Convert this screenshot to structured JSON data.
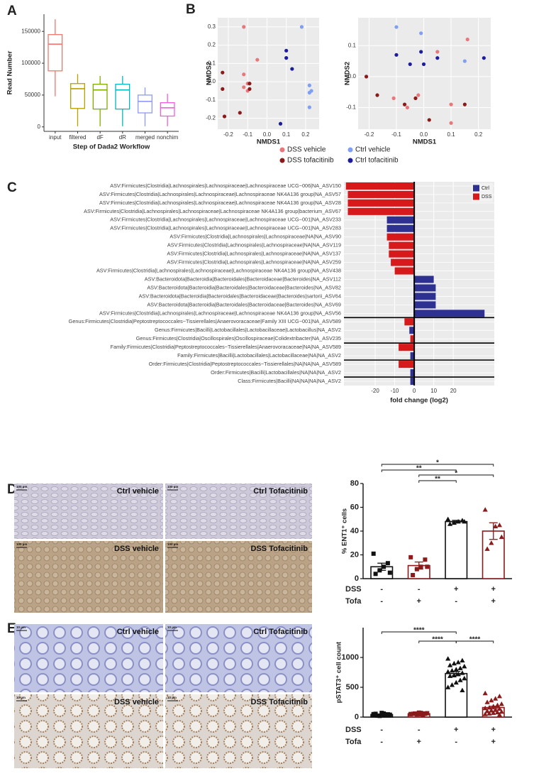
{
  "panels": [
    "A",
    "B",
    "C",
    "D",
    "E"
  ],
  "micrographs": [
    {
      "scale": "100 µm",
      "labels": [
        "Ctrl vehicle",
        "Ctrl Tofacitinib",
        "DSS vehicle",
        "DSS Tofacitinib"
      ]
    },
    {
      "scale": "10 µm",
      "labels": [
        "Ctrl vehicle",
        "Ctrl Tofacitinib",
        "DSS vehicle",
        "DSS Tofacitinib"
      ]
    }
  ],
  "chart_data": [
    {
      "type": "box",
      "y_label": "Read Number",
      "x_label": "Step of Dada2 Workflow",
      "categories": [
        "input",
        "filtered",
        "dF",
        "dR",
        "merged",
        "nonchim"
      ],
      "colors": [
        "#f0766e",
        "#b79f00",
        "#7cae00",
        "#00b8bd",
        "#8e9bf0",
        "#f05fdc"
      ],
      "min": [
        48000,
        1000,
        1000,
        1000,
        1000,
        1000
      ],
      "q1": [
        88000,
        29000,
        28000,
        28000,
        22000,
        17000
      ],
      "median": [
        130000,
        60000,
        58000,
        58000,
        40000,
        30000
      ],
      "q3": [
        145000,
        68000,
        67000,
        67000,
        50000,
        38000
      ],
      "max": [
        169000,
        83000,
        80000,
        80000,
        62000,
        52000
      ],
      "ylim": [
        -7000,
        177000
      ],
      "yticks": [
        0,
        50000,
        100000,
        150000
      ]
    },
    {
      "type": "scatter",
      "x_label": "NMDS1",
      "y_label": "NMDS2",
      "legend": "bottom",
      "plots": [
        {
          "xlim": [
            -0.255,
            0.27
          ],
          "ylim": [
            -0.26,
            0.35
          ],
          "xticks": [
            -0.2,
            -0.1,
            {
              "value": 0,
              "label": "0.0"
            },
            0.1,
            0.2
          ],
          "yticks": [
            -0.2,
            -0.1,
            {
              "value": 0,
              "label": "0.0"
            },
            0.1,
            0.2,
            0.3
          ]
        },
        {
          "xlim": [
            -0.24,
            0.245
          ],
          "ylim": [
            -0.17,
            0.19
          ],
          "xticks": [
            -0.2,
            -0.1,
            {
              "value": 0,
              "label": "0.0"
            },
            0.1,
            0.2
          ],
          "yticks": [
            -0.1,
            {
              "value": 0,
              "label": "0.0"
            },
            0.1
          ]
        }
      ],
      "series": [
        {
          "name": "DSS vehicle",
          "color": "#e8777a",
          "points": [
            [
              [
                -0.12,
                0.3
              ],
              [
                -0.05,
                0.12
              ],
              [
                -0.12,
                0.04
              ],
              [
                -0.1,
                -0.01
              ],
              [
                -0.12,
                -0.03
              ],
              [
                -0.1,
                -0.05
              ]
            ],
            [
              [
                0.16,
                0.12
              ],
              [
                0.05,
                0.08
              ],
              [
                -0.11,
                -0.07
              ],
              [
                -0.06,
                -0.1
              ],
              [
                -0.02,
                -0.06
              ],
              [
                0.1,
                -0.09
              ],
              [
                0.1,
                -0.15
              ]
            ]
          ]
        },
        {
          "name": "Ctrl vehicle",
          "color": "#7f9ef5",
          "points": [
            [
              [
                0.18,
                0.3
              ],
              [
                0.22,
                -0.02
              ],
              [
                0.23,
                -0.05
              ],
              [
                0.22,
                -0.06
              ],
              [
                0.22,
                -0.14
              ]
            ],
            [
              [
                -0.1,
                0.16
              ],
              [
                0.15,
                0.05
              ],
              [
                -0.01,
                0.14
              ]
            ]
          ]
        },
        {
          "name": "DSS tofacitinib",
          "color": "#8b1a1a",
          "points": [
            [
              [
                -0.09,
                -0.01
              ],
              [
                -0.09,
                -0.04
              ],
              [
                -0.23,
                0.05
              ],
              [
                -0.23,
                -0.04
              ],
              [
                -0.22,
                -0.19
              ],
              [
                -0.14,
                -0.17
              ]
            ],
            [
              [
                -0.21,
                0.0
              ],
              [
                -0.17,
                -0.06
              ],
              [
                -0.03,
                -0.07
              ],
              [
                0.02,
                -0.14
              ],
              [
                0.15,
                -0.09
              ],
              [
                -0.07,
                -0.09
              ]
            ]
          ]
        },
        {
          "name": "Ctrl tofacitinib",
          "color": "#1c1c9c",
          "points": [
            [
              [
                0.1,
                0.17
              ],
              [
                0.1,
                0.13
              ],
              [
                0.13,
                0.07
              ],
              [
                0.07,
                -0.23
              ]
            ],
            [
              [
                -0.1,
                0.07
              ],
              [
                -0.05,
                0.04
              ],
              [
                0.0,
                0.04
              ],
              [
                0.05,
                0.06
              ],
              [
                0.22,
                0.06
              ],
              [
                -0.01,
                0.08
              ]
            ]
          ]
        }
      ]
    },
    {
      "type": "barh",
      "x_label": "fold change (log2)",
      "legend": "top-right",
      "xlim": [
        -36,
        41
      ],
      "xticks": [
        -20,
        -10,
        0,
        10,
        20
      ],
      "categories": [
        "ASV:Firmicutes|Clostridia|Lachnospirales|Lachnospiraceae|Lachnospiraceae UCG−006|NA_ASV150",
        "ASV:Firmicutes|Clostridia|Lachnospirales|Lachnospiraceae|Lachnospiraceae NK4A136 group|NA_ASV57",
        "ASV:Firmicutes|Clostridia|Lachnospirales|Lachnospiraceae|Lachnospiraceae NK4A136 group|NA_ASV28",
        "ASV:Firmicutes|Clostridia|Lachnospirales|Lachnospiraceae|Lachnospiraceae NK4A136 group|bacterium_ASV67",
        "ASV:Firmicutes|Clostridia|Lachnospirales|Lachnospiraceae|Lachnospiraceae UCG−001|NA_ASV233",
        "ASV:Firmicutes|Clostridia|Lachnospirales|Lachnospiraceae|Lachnospiraceae UCG−001|NA_ASV283",
        "ASV:Firmicutes|Clostridia|Lachnospirales|Lachnospiraceae|NA|NA_ASV90",
        "ASV:Firmicutes|Clostridia|Lachnospirales|Lachnospiraceae|NA|NA_ASV119",
        "ASV:Firmicutes|Clostridia|Lachnospirales|Lachnospiraceae|NA|NA_ASV137",
        "ASV:Firmicutes|Clostridia|Lachnospirales|Lachnospiraceae|NA|NA_ASV259",
        "ASV:Firmicutes|Clostridia|Lachnospirales|Lachnospiraceae|Lachnospiraceae NK4A136 group|NA_ASV438",
        "ASV:Bacteroidota|Bacteroidia|Bacteroidales|Bacteroidaceae|Bacteroides|NA_ASV112",
        "ASV:Bacteroidota|Bacteroidia|Bacteroidales|Bacteroidaceae|Bacteroides|NA_ASV82",
        "ASV:Bacteroidota|Bacteroidia|Bacteroidales|Bacteroidaceae|Bacteroides|sartorii_ASV64",
        "ASV:Bacteroidota|Bacteroidia|Bacteroidales|Bacteroidaceae|Bacteroides|NA_ASV69",
        "ASV:Firmicutes|Clostridia|Lachnospirales|Lachnospiraceae|Lachnospiraceae NK4A136 group|NA_ASV56",
        "Genus:Firmicutes|Clostridia|Peptostreptococcales−Tissierellales|Anaerovoracaceae|Family XIII UCG−001|NA_ASV589",
        "Genus:Firmicutes|Bacilli|Lactobacillales|Lactobacillaceae|Lactobacillus|NA_ASV2",
        "Genus:Firmicutes|Clostridia|Oscillospirales|Oscillospiraceae|Colidextribacter|NA_ASV235",
        "Family:Firmicutes|Clostridia|Peptostreptococcales−Tissierellales|Anaerovoracaceae|NA|NA_ASV589",
        "Family:Firmicutes|Bacilli|Lactobacillales|Lactobacillaceae|NA|NA_ASV2",
        "Order:Firmicutes|Clostridia|Peptostreptococcales−Tissierellales|NA|NA|NA_ASV589",
        "Order:Firmicutes|Bacilli|Lactobacillales|NA|NA|NA_ASV2",
        "Class:Firmicutes|Bacilli|NA|NA|NA|NA_ASV2"
      ],
      "series": [
        {
          "name": "Ctrl",
          "color": "#2e3192",
          "values": [
            null,
            null,
            null,
            null,
            -14,
            -14,
            null,
            null,
            null,
            null,
            null,
            10,
            11,
            11,
            11,
            36,
            null,
            -2.5,
            null,
            null,
            -2,
            null,
            -2,
            -2
          ]
        },
        {
          "name": "DSS",
          "color": "#d7191c",
          "values": [
            -35,
            -34,
            -34,
            -34,
            null,
            null,
            -14,
            -13,
            -13,
            -12,
            -10,
            null,
            null,
            null,
            null,
            null,
            -5,
            null,
            -2,
            -8,
            null,
            -8,
            null,
            null
          ]
        }
      ]
    },
    {
      "type": "bar",
      "y_label": "% ENT1⁺ cells",
      "ylim": [
        0,
        80
      ],
      "yticks": [
        0,
        20,
        40,
        60,
        80
      ],
      "values": [
        10,
        11,
        48,
        40
      ],
      "errors": [
        3,
        3,
        1,
        7
      ],
      "colors": [
        "#111111",
        "#8b1a1a",
        "#111111",
        "#8b1a1a"
      ],
      "markers": [
        "square",
        "square",
        "triangle",
        "triangle"
      ],
      "points": [
        [
          21,
          13,
          10,
          7,
          4,
          5
        ],
        [
          18,
          16,
          10,
          8,
          3,
          10
        ],
        [
          50,
          49,
          48,
          47,
          46,
          48
        ],
        [
          58,
          45,
          44,
          30,
          25,
          35
        ]
      ],
      "brackets": [
        {
          "groups": [
            0,
            3
          ],
          "label": "*"
        },
        {
          "groups": [
            0,
            2
          ],
          "label": "**"
        },
        {
          "groups": [
            1,
            3
          ],
          "label": "*"
        },
        {
          "groups": [
            1,
            2
          ],
          "label": "**"
        }
      ],
      "conditions": [
        {
          "name": "DSS",
          "values": [
            "-",
            "-",
            "+",
            "+"
          ]
        },
        {
          "name": "Tofa",
          "values": [
            "-",
            "+",
            "-",
            "+"
          ]
        }
      ]
    },
    {
      "type": "bar",
      "y_label": "pSTAT3⁺ cell count",
      "ylim": [
        0,
        1500
      ],
      "yticks": [
        0,
        500,
        1000
      ],
      "values": [
        43,
        56,
        730,
        160
      ],
      "errors": [
        8,
        6,
        35,
        22
      ],
      "colors": [
        "#111111",
        "#8b1a1a",
        "#111111",
        "#8b1a1a"
      ],
      "markers": [
        "square",
        "square",
        "triangle",
        "triangle"
      ],
      "points": [
        [
          30,
          45,
          60,
          20,
          55,
          40,
          35,
          70,
          25,
          50,
          45,
          38
        ],
        [
          50,
          60,
          70,
          45,
          55,
          65,
          40,
          75,
          60,
          50,
          55,
          48
        ],
        [
          980,
          950,
          920,
          900,
          870,
          850,
          820,
          800,
          780,
          760,
          740,
          720,
          700,
          690,
          650,
          620,
          580,
          540,
          500,
          450
        ],
        [
          400,
          350,
          310,
          280,
          250,
          220,
          200,
          180,
          160,
          150,
          140,
          120,
          110,
          100,
          90,
          80,
          70,
          60,
          50,
          40
        ]
      ],
      "brackets": [
        {
          "groups": [
            0,
            2
          ],
          "label": "****"
        },
        {
          "groups": [
            1,
            2
          ],
          "label": "****"
        },
        {
          "groups": [
            2,
            3
          ],
          "label": "****"
        }
      ],
      "conditions": [
        {
          "name": "DSS",
          "values": [
            "-",
            "-",
            "+",
            "+"
          ]
        },
        {
          "name": "Tofa",
          "values": [
            "-",
            "+",
            "-",
            "+"
          ]
        }
      ]
    }
  ]
}
